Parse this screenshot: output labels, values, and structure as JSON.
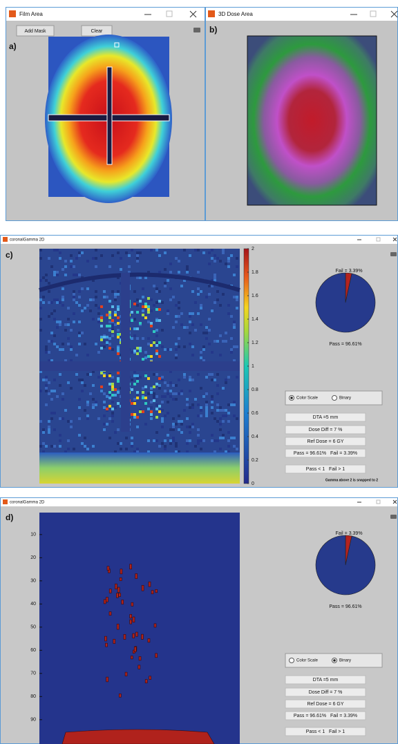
{
  "film_window": {
    "title": "Film Area",
    "buttons": [
      "Add Mask",
      "Clear"
    ],
    "panel_label": "a)"
  },
  "dose_window": {
    "title": "3D Dose Area",
    "panel_label": "b)"
  },
  "gamma_color_window": {
    "title": "coronalGamma 2D",
    "panel_label": "c)",
    "colorbar": {
      "lim": [
        0,
        2
      ],
      "ticks": [
        0,
        0.2,
        0.4,
        0.6,
        0.8,
        1,
        1.2,
        1.4,
        1.6,
        1.8,
        2
      ]
    },
    "pie": {
      "values": [
        3.39,
        96.61
      ],
      "labels": [
        "Fail = 3.39%",
        "Pass = 96.61%"
      ],
      "colors": [
        "#b4231f",
        "#263a8c"
      ]
    },
    "radio": [
      "Color Scale",
      "Binary"
    ],
    "selected": 0,
    "info": [
      "DTA =5 mm",
      "Dose Diff = 7 %",
      "Ref Dose = 6 GY",
      "Pass = 96.61%   Fail = 3.39%",
      "Pass < 1   Fail > 1"
    ],
    "note": "Gamma above 2 is snapped to 2"
  },
  "gamma_binary_window": {
    "title": "coronalGamma 2D",
    "panel_label": "d)",
    "yaxis": {
      "lim": [
        0.5,
        100.5
      ],
      "ticks": [
        10,
        20,
        30,
        40,
        50,
        60,
        70,
        80,
        90
      ]
    },
    "pie": {
      "values": [
        3.39,
        96.61
      ],
      "labels": [
        "Fail = 3.39%",
        "Pass = 96.61%"
      ],
      "colors": [
        "#b4231f",
        "#263a8c"
      ]
    },
    "radio": [
      "Color Scale",
      "Binary"
    ],
    "selected": 1,
    "info": [
      "DTA =5 mm",
      "Dose Diff = 7 %",
      "Ref Dose = 6 GY",
      "Pass = 96.61%   Fail = 3.39%",
      "Pass < 1   Fail > 1"
    ]
  }
}
